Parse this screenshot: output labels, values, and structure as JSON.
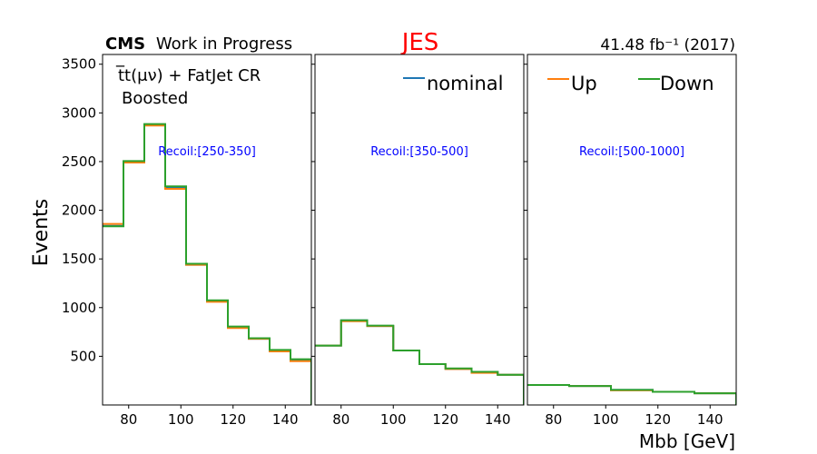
{
  "header": {
    "cms_label": "CMS",
    "cms_sub": "Work in Progress",
    "title": "JES",
    "lumi": "41.48 fb⁻¹ (2017)"
  },
  "annotations": {
    "process": "t̅t(μν) + FatJet CR",
    "category": "Boosted"
  },
  "legend": {
    "nominal": "nominal",
    "up": "Up",
    "down": "Down"
  },
  "colors": {
    "nominal": "#1f77b4",
    "up": "#ff7f0e",
    "down": "#2ca02c",
    "title": "#ff0000",
    "recoil": "#0000ff"
  },
  "chart_data": {
    "type": "line",
    "style": "step",
    "title": "JES",
    "xlabel": "Mbb [GeV]",
    "ylabel": "Events",
    "ylim": [
      0,
      3600
    ],
    "yticks": [
      500,
      1000,
      1500,
      2000,
      2500,
      3000,
      3500
    ],
    "xticks": [
      80,
      100,
      120,
      140
    ],
    "xlim": [
      70,
      150
    ],
    "panels": [
      {
        "label": "Recoil:[250-350]",
        "edges": [
          70,
          78,
          86,
          94,
          102,
          110,
          118,
          126,
          134,
          142,
          150
        ],
        "series": [
          {
            "name": "nominal",
            "values": [
              1840,
              2500,
              2880,
              2230,
              1440,
              1070,
              800,
              680,
              560,
              460
            ]
          },
          {
            "name": "Up",
            "values": [
              1860,
              2490,
              2870,
              2220,
              1440,
              1060,
              790,
              680,
              550,
              450
            ]
          },
          {
            "name": "Down",
            "values": [
              1835,
              2505,
              2885,
              2245,
              1450,
              1075,
              805,
              685,
              565,
              470
            ]
          }
        ]
      },
      {
        "label": "Recoil:[350-500]",
        "edges": [
          70,
          80,
          90,
          100,
          110,
          120,
          130,
          140,
          150
        ],
        "series": [
          {
            "name": "nominal",
            "values": [
              610,
              870,
              810,
              560,
              420,
              370,
              340,
              310
            ]
          },
          {
            "name": "Up",
            "values": [
              610,
              860,
              810,
              560,
              420,
              370,
              330,
              310
            ]
          },
          {
            "name": "Down",
            "values": [
              610,
              870,
              815,
              560,
              420,
              375,
              340,
              310
            ]
          }
        ]
      },
      {
        "label": "Recoil:[500-1000]",
        "edges": [
          70,
          86,
          102,
          118,
          134,
          150
        ],
        "series": [
          {
            "name": "nominal",
            "values": [
              205,
              195,
              155,
              135,
              120
            ]
          },
          {
            "name": "Up",
            "values": [
              205,
              195,
              150,
              135,
              120
            ]
          },
          {
            "name": "Down",
            "values": [
              205,
              195,
              155,
              135,
              120
            ]
          }
        ]
      }
    ]
  }
}
